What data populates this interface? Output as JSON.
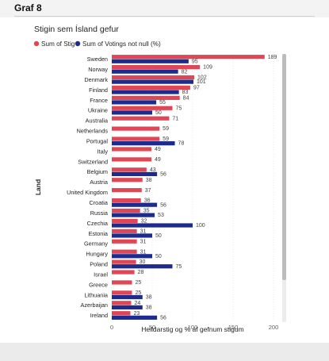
{
  "page": {
    "heading": "Graf 8"
  },
  "chart_data": {
    "type": "bar",
    "orientation": "horizontal",
    "title": "Stigin sem Ísland gefur",
    "xlabel": "Heildarstig og % af gefnum stigum",
    "ylabel": "Land",
    "xlim": [
      0,
      200
    ],
    "xticks": [
      "0",
      "50",
      "100",
      "150",
      "200"
    ],
    "grid": true,
    "legend_position": "top-left",
    "categories": [
      "Sweden",
      "Norway",
      "Denmark",
      "Finland",
      "France",
      "Ukraine",
      "Australia",
      "Netherlands",
      "Portugal",
      "Italy",
      "Switzerland",
      "Belgium",
      "Austria",
      "United Kingdom",
      "Croatia",
      "Russia",
      "Czechia",
      "Estonia",
      "Germany",
      "Hungary",
      "Poland",
      "Israel",
      "Greece",
      "Lithuania",
      "Azerbaijan",
      "Ireland"
    ],
    "series": [
      {
        "name": "Sum of Stig",
        "color": "#e04756",
        "values": [
          189,
          109,
          102,
          97,
          84,
          75,
          71,
          59,
          59,
          49,
          49,
          43,
          38,
          37,
          36,
          35,
          32,
          31,
          31,
          31,
          30,
          28,
          25,
          25,
          24,
          23
        ]
      },
      {
        "name": "Sum of Votings not null (%)",
        "color": "#1d2b8f",
        "values": [
          95,
          82,
          101,
          83,
          55,
          50,
          null,
          null,
          78,
          null,
          null,
          56,
          null,
          null,
          56,
          53,
          100,
          50,
          null,
          50,
          75,
          null,
          null,
          38,
          38,
          56
        ]
      }
    ]
  }
}
